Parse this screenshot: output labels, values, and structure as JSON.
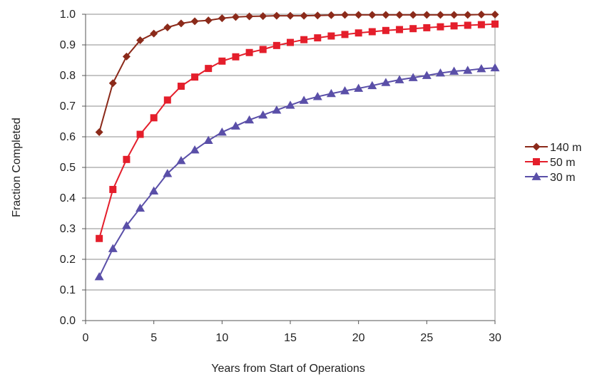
{
  "chart_data": {
    "type": "line",
    "title": "",
    "xlabel": "Years from Start of Operations",
    "ylabel": "Fraction Completed",
    "xlim": [
      0,
      30
    ],
    "ylim": [
      0.0,
      1.0
    ],
    "x_ticks": [
      "0",
      "5",
      "10",
      "15",
      "20",
      "25",
      "30"
    ],
    "y_ticks": [
      "0.0",
      "0.1",
      "0.2",
      "0.3",
      "0.4",
      "0.5",
      "0.6",
      "0.7",
      "0.8",
      "0.9",
      "1.0"
    ],
    "grid": "horizontal",
    "legend_position": "right",
    "x": [
      1,
      2,
      3,
      4,
      5,
      6,
      7,
      8,
      9,
      10,
      11,
      12,
      13,
      14,
      15,
      16,
      17,
      18,
      19,
      20,
      21,
      22,
      23,
      24,
      25,
      26,
      27,
      28,
      29,
      30
    ],
    "series": [
      {
        "name": "140 m",
        "color": "#8B2A1A",
        "marker": "diamond",
        "values": [
          0.615,
          0.775,
          0.862,
          0.915,
          0.937,
          0.957,
          0.97,
          0.977,
          0.98,
          0.987,
          0.991,
          0.993,
          0.994,
          0.995,
          0.995,
          0.995,
          0.996,
          0.997,
          0.998,
          0.998,
          0.998,
          0.998,
          0.998,
          0.998,
          0.998,
          0.998,
          0.998,
          0.998,
          0.999,
          0.999
        ]
      },
      {
        "name": "50 m",
        "color": "#E41E2B",
        "marker": "square",
        "values": [
          0.268,
          0.428,
          0.526,
          0.608,
          0.662,
          0.72,
          0.765,
          0.795,
          0.823,
          0.847,
          0.861,
          0.875,
          0.885,
          0.898,
          0.908,
          0.917,
          0.923,
          0.929,
          0.934,
          0.939,
          0.943,
          0.947,
          0.95,
          0.953,
          0.956,
          0.959,
          0.962,
          0.964,
          0.966,
          0.968
        ]
      },
      {
        "name": "30 m",
        "color": "#5A4FA8",
        "marker": "triangle",
        "values": [
          0.143,
          0.235,
          0.31,
          0.367,
          0.423,
          0.48,
          0.522,
          0.557,
          0.588,
          0.615,
          0.635,
          0.655,
          0.671,
          0.687,
          0.703,
          0.719,
          0.731,
          0.741,
          0.75,
          0.758,
          0.767,
          0.777,
          0.786,
          0.793,
          0.8,
          0.808,
          0.814,
          0.817,
          0.822,
          0.825
        ]
      }
    ]
  }
}
